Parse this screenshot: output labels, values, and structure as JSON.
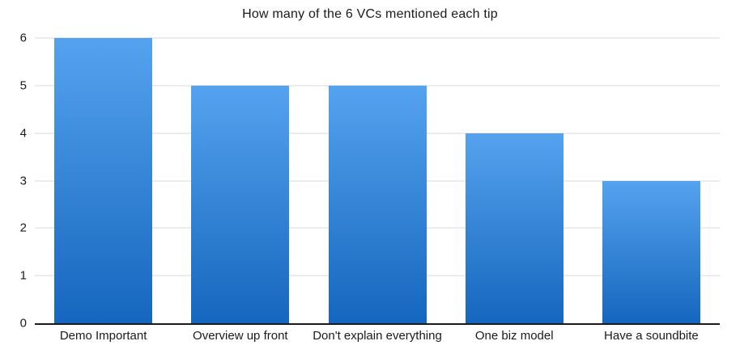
{
  "chart_data": {
    "type": "bar",
    "title": "How many of the 6 VCs mentioned each tip",
    "categories": [
      "Demo Important",
      "Overview up front",
      "Don't explain everything",
      "One biz model",
      "Have a soundbite"
    ],
    "values": [
      6,
      5,
      5,
      4,
      3
    ],
    "xlabel": "",
    "ylabel": "",
    "ylim": [
      0,
      6
    ],
    "yticks": [
      0,
      1,
      2,
      3,
      4,
      5,
      6
    ],
    "grid": true,
    "legend": false,
    "colors": {
      "bar_gradient_top": "#55a3ef",
      "bar_gradient_bottom": "#1566be",
      "gridline": "#ececec",
      "axis_line": "#1a1a1a",
      "text": "#1a1a1a",
      "background": "#ffffff"
    }
  }
}
